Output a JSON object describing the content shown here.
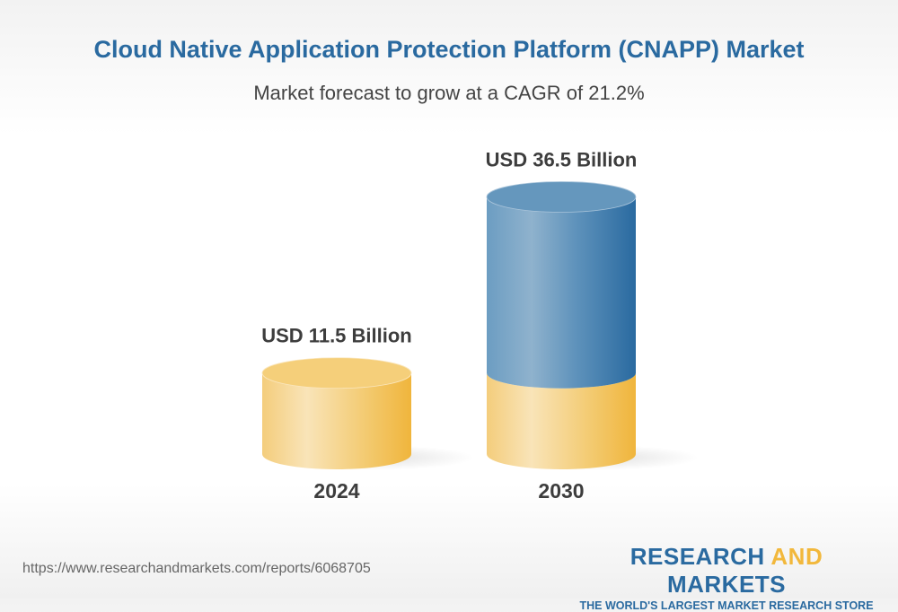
{
  "title": "Cloud Native Application Protection Platform (CNAPP) Market",
  "subtitle": "Market forecast to grow at a CAGR of 21.2%",
  "chart_data": {
    "type": "bar",
    "style": "3d-cylinder",
    "categories": [
      "2024",
      "2030"
    ],
    "values": [
      11.5,
      36.5
    ],
    "value_labels": [
      "USD 11.5 Billion",
      "USD 36.5 Billion"
    ],
    "unit": "USD Billion",
    "cagr": "21.2%",
    "colors": {
      "base": "#f2b83c",
      "growth": "#2a6aa0"
    }
  },
  "footer": {
    "url": "https://www.researchandmarkets.com/reports/6068705",
    "logo_part1": "RESEARCH ",
    "logo_part2": "AND",
    "logo_part3": " MARKETS",
    "tagline": "THE WORLD'S LARGEST MARKET RESEARCH STORE"
  }
}
